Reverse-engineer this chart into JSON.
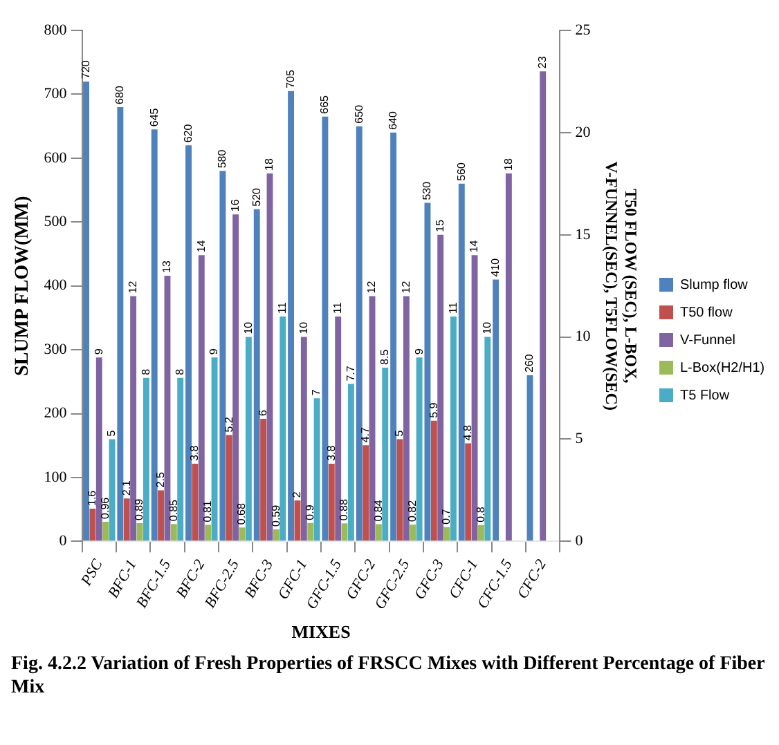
{
  "chart_data": {
    "type": "bar",
    "title": "Fig. 4.2.2 Variation of Fresh Properties of FRSCC Mixes with Different Percentage of Fiber Mix",
    "xlabel": "MIXES",
    "ylabel": "SLUMP FLOW(MM)",
    "y2label": "T50 FLOW (SEC), L-BOX, V-FUNNEL(SEC), T5FLOW(SEC)",
    "categories": [
      "PSC",
      "BFC-1",
      "BFC-1.5",
      "BFC-2",
      "BFC-2.5",
      "BFC-3",
      "GFC-1",
      "GFC-1.5",
      "GFC-2",
      "GFC-2.5",
      "GFC-3",
      "CFC-1",
      "CFC-1.5",
      "CFC-2"
    ],
    "series": [
      {
        "name": "Slump flow",
        "color": "#4f81bd",
        "values": [
          720,
          680,
          645,
          620,
          580,
          520,
          705,
          665,
          650,
          640,
          530,
          560,
          410,
          260
        ]
      },
      {
        "name": "T50 flow",
        "color": "#c0504d",
        "axis": "y2",
        "values": [
          1.6,
          2.1,
          2.5,
          3.8,
          5.2,
          6,
          2,
          3.8,
          4.7,
          5,
          5.9,
          4.8,
          null,
          null
        ]
      },
      {
        "name": "V-Funnel",
        "color": "#8064a2",
        "axis": "y2",
        "values": [
          9,
          12,
          13,
          14,
          16,
          18,
          10,
          11,
          12,
          12,
          15,
          14,
          18,
          23
        ]
      },
      {
        "name": "L-Box(H2/H1)",
        "color": "#9bbb59",
        "axis": "y2",
        "values": [
          0.96,
          0.89,
          0.85,
          0.81,
          0.68,
          0.59,
          0.9,
          0.88,
          0.84,
          0.82,
          0.7,
          0.8,
          null,
          null
        ]
      },
      {
        "name": "T5 Flow",
        "color": "#4bacc6",
        "axis": "y2",
        "values": [
          5,
          8,
          8,
          9,
          10,
          11,
          7,
          7.7,
          8.5,
          9,
          11,
          10,
          null,
          null
        ]
      }
    ],
    "ylim": [
      0,
      800
    ],
    "yticks": [
      0,
      100,
      200,
      300,
      400,
      500,
      600,
      700,
      800
    ],
    "y2lim": [
      0,
      25
    ],
    "y2ticks": [
      0,
      5,
      10,
      15,
      20,
      25
    ],
    "grid": false,
    "legend": "right",
    "data_labels": true
  }
}
